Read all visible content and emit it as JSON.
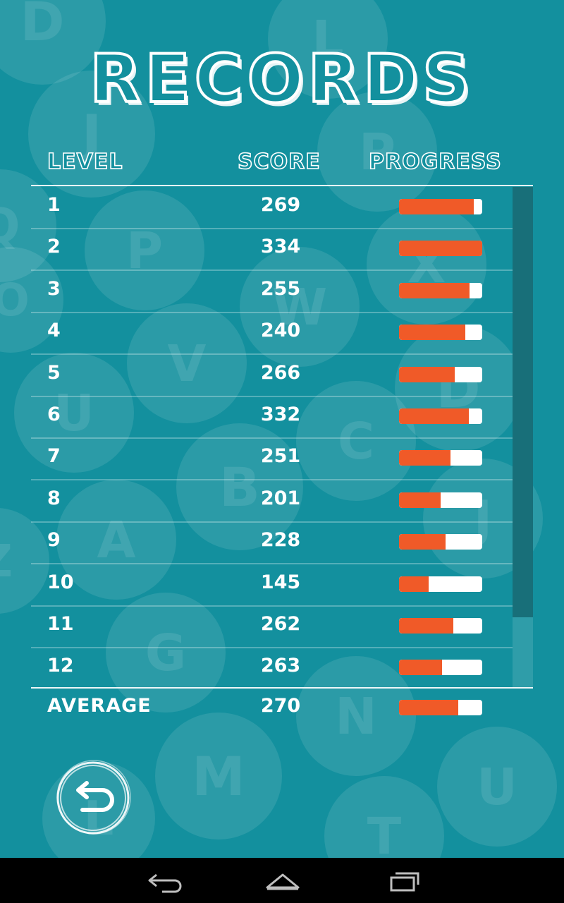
{
  "title": "RECORDS",
  "headers": {
    "level": "LEVEL",
    "score": "SCORE",
    "progress": "PROGRESS"
  },
  "rows": [
    {
      "level": "1",
      "score": "269",
      "progress": 0.9
    },
    {
      "level": "2",
      "score": "334",
      "progress": 1.0
    },
    {
      "level": "3",
      "score": "255",
      "progress": 0.85
    },
    {
      "level": "4",
      "score": "240",
      "progress": 0.8
    },
    {
      "level": "5",
      "score": "266",
      "progress": 0.67
    },
    {
      "level": "6",
      "score": "332",
      "progress": 0.84
    },
    {
      "level": "7",
      "score": "251",
      "progress": 0.62
    },
    {
      "level": "8",
      "score": "201",
      "progress": 0.5
    },
    {
      "level": "9",
      "score": "228",
      "progress": 0.56
    },
    {
      "level": "10",
      "score": "145",
      "progress": 0.36
    },
    {
      "level": "11",
      "score": "262",
      "progress": 0.65
    },
    {
      "level": "12",
      "score": "263",
      "progress": 0.52
    }
  ],
  "average": {
    "label": "AVERAGE",
    "score": "270",
    "progress": 0.71
  },
  "colors": {
    "background": "#13909e",
    "bar_fill": "#f05a28",
    "bar_track": "#ffffff",
    "scroll_thumb": "#186f79"
  },
  "icons": {
    "back_button": "undo-arrow-icon",
    "nav_back": "nav-back-icon",
    "nav_home": "nav-home-icon",
    "nav_recents": "nav-recents-icon"
  },
  "background_letters": [
    "D",
    "L",
    "J",
    "P",
    "Q",
    "P",
    "X",
    "O",
    "W",
    "V",
    "U",
    "C",
    "D",
    "B",
    "J",
    "A",
    "Z",
    "G",
    "N",
    "M",
    "U",
    "T",
    "L"
  ]
}
